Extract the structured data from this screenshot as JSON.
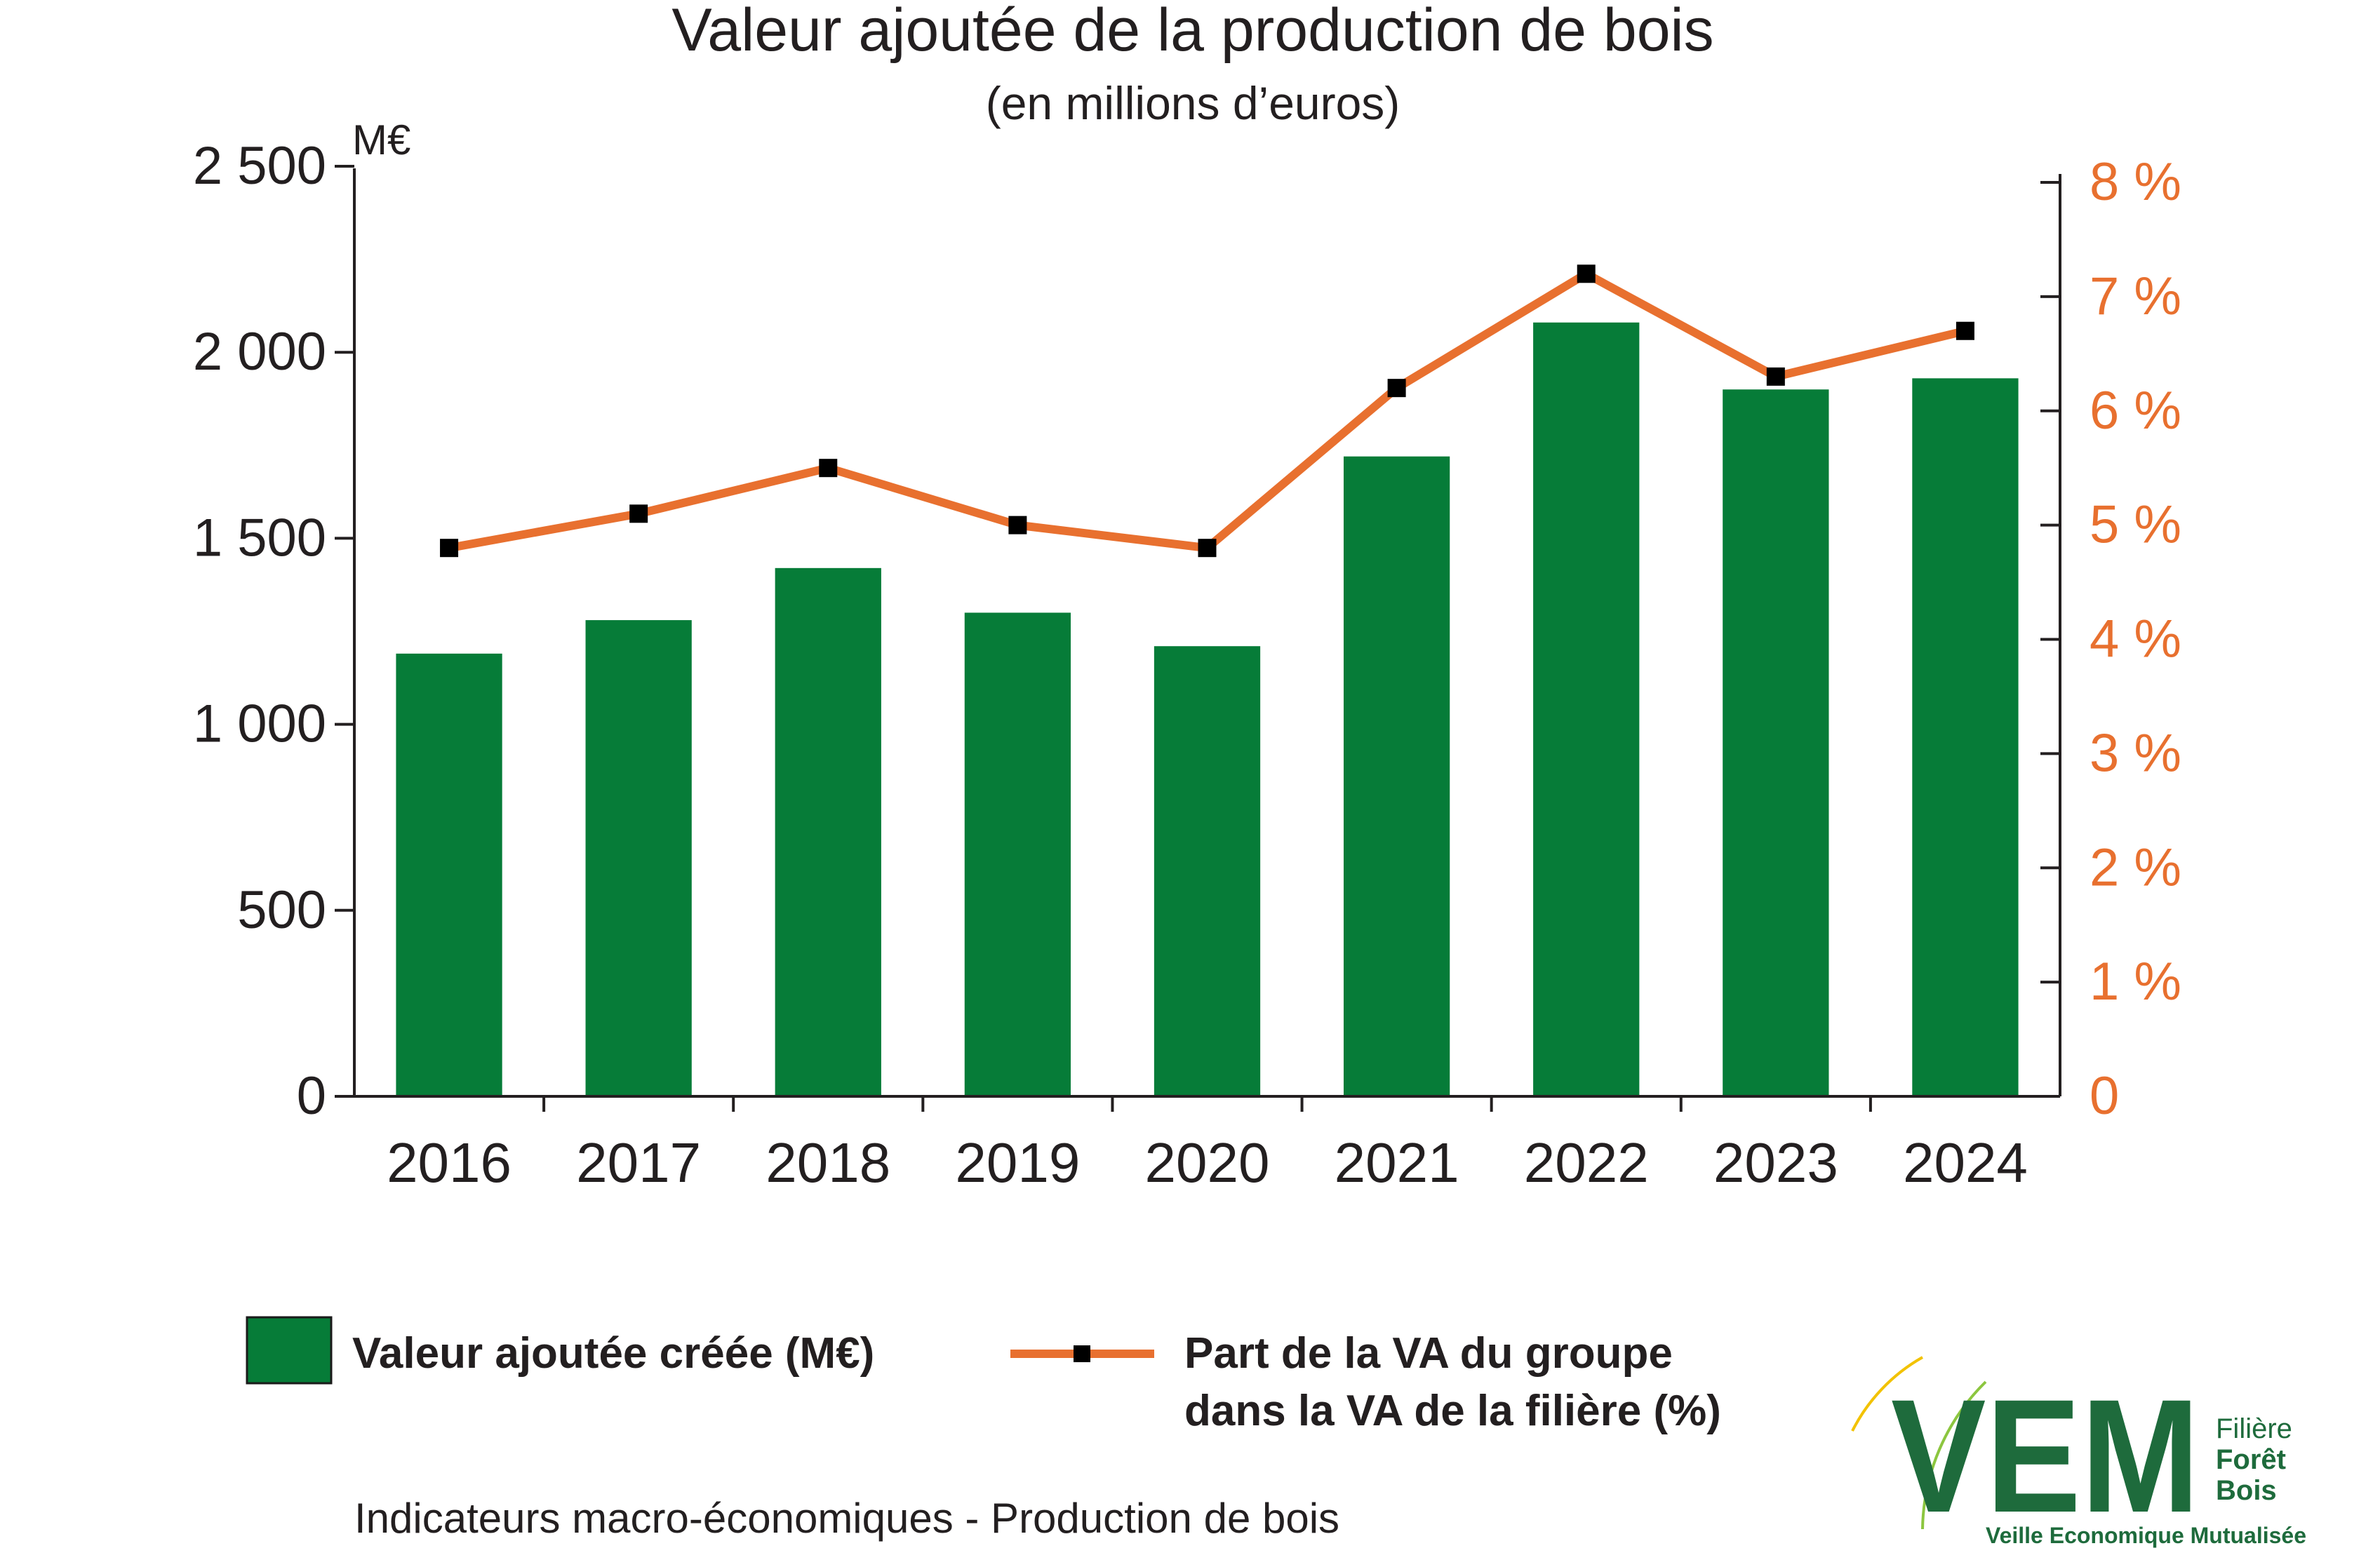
{
  "chart_data": {
    "type": "bar",
    "title": "Valeur ajoutée de la production de bois",
    "subtitle": "(en millions d’euros)",
    "y_unit_label": "M€",
    "categories": [
      "2016",
      "2017",
      "2018",
      "2019",
      "2020",
      "2021",
      "2022",
      "2023",
      "2024"
    ],
    "series": [
      {
        "name": "Valeur ajoutée créée (M€)",
        "type": "bar",
        "axis": "left",
        "color": "#067c38",
        "values": [
          1190,
          1280,
          1420,
          1300,
          1210,
          1720,
          2080,
          1900,
          1930
        ]
      },
      {
        "name": "Part de la VA du groupe dans la VA de la filière (%)",
        "legend_lines": [
          "Part de la VA du groupe",
          "dans la VA de la filière (%)"
        ],
        "type": "line",
        "axis": "right",
        "color": "#e8702f",
        "marker_color": "#000000",
        "values": [
          4.8,
          5.1,
          5.5,
          5.0,
          4.8,
          6.2,
          7.2,
          6.3,
          6.7
        ]
      }
    ],
    "y_left": {
      "min": 0,
      "max": 2500,
      "ticks": [
        0,
        500,
        1000,
        1500,
        2000,
        2500
      ],
      "tick_labels": [
        "0",
        "500",
        "1 000",
        "1 500",
        "2 000",
        "2 500"
      ]
    },
    "y_right": {
      "min": 0,
      "max": 8,
      "ticks": [
        0,
        1,
        2,
        3,
        4,
        5,
        6,
        7,
        8
      ],
      "tick_labels": [
        "0",
        "1 %",
        "2 %",
        "3 %",
        "4 %",
        "5 %",
        "6 %",
        "7 %",
        "8 %"
      ],
      "color": "#e8702f"
    },
    "grid": false,
    "legend_placement": "bottom"
  },
  "footer": {
    "caption": "Indicateurs macro-économiques - Production de bois"
  },
  "logo": {
    "letters": "VEM",
    "line1": "Filière",
    "line2": "Forêt",
    "line3": "Bois",
    "tagline": "Veille Economique Mutualisée",
    "color_green": "#1e6b3c",
    "color_yellow": "#f2c200"
  }
}
